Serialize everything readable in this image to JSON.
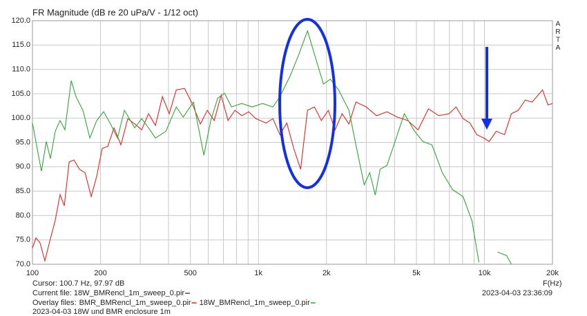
{
  "chart_data": {
    "type": "line",
    "title": "FR Magnitude (dB re 20 uPa/V - 1/12 oct)",
    "brand": [
      "A",
      "R",
      "T",
      "A"
    ],
    "xlabel": "F(Hz)",
    "x_scale": "log",
    "xlim": [
      100,
      20000
    ],
    "xticks": [
      {
        "value": 100,
        "label": "100"
      },
      {
        "value": 200,
        "label": "200"
      },
      {
        "value": 500,
        "label": "500"
      },
      {
        "value": 1000,
        "label": "1k"
      },
      {
        "value": 2000,
        "label": "2k"
      },
      {
        "value": 5000,
        "label": "5k"
      },
      {
        "value": 10000,
        "label": "10k"
      },
      {
        "value": 20000,
        "label": "20k"
      }
    ],
    "xgrid_minor": [
      300,
      400,
      600,
      700,
      800,
      900,
      3000,
      4000,
      6000,
      7000,
      8000,
      9000
    ],
    "ylim": [
      70,
      120
    ],
    "yticks": [
      {
        "value": 70,
        "label": "70.0"
      },
      {
        "value": 75,
        "label": "75.0"
      },
      {
        "value": 80,
        "label": "80.0"
      },
      {
        "value": 85,
        "label": "85.0"
      },
      {
        "value": 90,
        "label": "90.0"
      },
      {
        "value": 95,
        "label": "95.0"
      },
      {
        "value": 100,
        "label": "100.0"
      },
      {
        "value": 105,
        "label": "105.0"
      },
      {
        "value": 110,
        "label": "110.0"
      },
      {
        "value": 115,
        "label": "115.0"
      },
      {
        "value": 120,
        "label": "120.0"
      }
    ],
    "grid": true,
    "cursor": "Cursor: 100.7 Hz, 97.97 dB",
    "current_file": "Current file: 18W_BMRencl_1m_sweep_0.pir",
    "overlay_label": "Overlay files:",
    "timestamp": "2023-04-03  23:36:09",
    "note": "2023-04-03 18W und BMR enclosure 1m",
    "series": [
      {
        "name": "BMR_BMRencl_1m_sweep_0.pir",
        "color": "#e8231e",
        "x": [
          100,
          103.6,
          108,
          113.5,
          119.2,
          126,
          132.5,
          138.3,
          145.3,
          152.6,
          161.4,
          170.8,
          182,
          192.5,
          203.6,
          215.4,
          229.6,
          246.3,
          264.2,
          283.6,
          304.2,
          326.4,
          350.2,
          375.8,
          403.1,
          432.6,
          470.8,
          508.7,
          553.5,
          593.9,
          637.3,
          683.8,
          733.6,
          787.1,
          844.6,
          906.3,
          972.3,
          1080,
          1159,
          1244,
          1335,
          1432,
          1537,
          1649,
          1769,
          1898,
          2037,
          2185,
          2344,
          2515,
          2699,
          2999,
          3334,
          3706,
          4119,
          4577,
          5086,
          5653,
          6282,
          6982,
          7491,
          8039,
          8626,
          9256,
          9929,
          10500,
          11270,
          12270,
          13160,
          14120,
          15150,
          16260,
          18070,
          19110,
          20000
        ],
        "values": [
          73.3,
          75.4,
          74.4,
          70.7,
          74.7,
          78.9,
          84.3,
          82,
          91,
          91.4,
          89.5,
          88.8,
          83.9,
          88.1,
          93.8,
          94.2,
          98,
          94.5,
          99.9,
          98.8,
          97.6,
          100.9,
          98.5,
          104.4,
          100.9,
          105.8,
          106.1,
          103,
          98.8,
          101.6,
          99.5,
          104.7,
          99.5,
          101.6,
          100.5,
          101.3,
          99.9,
          99,
          99.9,
          96.6,
          99,
          93.8,
          89.5,
          101.6,
          102.3,
          99.5,
          101.6,
          97.6,
          100.9,
          98.8,
          103.3,
          102.3,
          100.5,
          101.3,
          100.2,
          99.5,
          97.6,
          101.9,
          100.5,
          100.9,
          102.3,
          99.9,
          99,
          96.6,
          95.9,
          95.2,
          97.3,
          96.6,
          100.9,
          101.6,
          103.7,
          103.3,
          105.8,
          102.7,
          103
        ]
      },
      {
        "name": "18W_BMRencl_1m_sweep_0.pir",
        "color": "#2fa636",
        "x": [
          100,
          109.6,
          115.1,
          120.1,
          126.1,
          132.5,
          139.2,
          148.4,
          155.8,
          167.2,
          179.4,
          192.5,
          206.5,
          221.6,
          237.7,
          255.1,
          283.6,
          304.2,
          326.4,
          350.2,
          389.3,
          432.6,
          464.2,
          515.9,
          573.4,
          615.2,
          660.1,
          708.4,
          759.6,
          844.6,
          938.6,
          1043,
          1159,
          1244,
          1383,
          1505,
          1649,
          1794,
          1939,
          2080,
          2263,
          2515,
          2699,
          2937,
          3108,
          3287,
          3453,
          3706,
          3976,
          4419,
          4911,
          5344,
          5857,
          6510,
          7234,
          8039,
          8811,
          9452,
          10400,
          11430,
          12530,
          13160
        ],
        "values": [
          99,
          89.1,
          95.2,
          91.7,
          97.3,
          99.5,
          97.6,
          107.7,
          104.4,
          101.6,
          95.9,
          99.5,
          101.3,
          98.8,
          95.9,
          101.6,
          98,
          99.9,
          98,
          95.9,
          97.3,
          102.3,
          100.2,
          103.3,
          92.4,
          99.5,
          104.1,
          105.1,
          102.3,
          103,
          102.3,
          103,
          102.3,
          104.4,
          108.7,
          112.9,
          117.9,
          112.2,
          107,
          108,
          105.8,
          101.6,
          94.5,
          86.3,
          88.8,
          84.2,
          89.5,
          90.3,
          94.5,
          100.9,
          97.3,
          95.2,
          94.5,
          88.8,
          85.3,
          83.9,
          78.9,
          70.4,
          null,
          72.5,
          71.8,
          70
        ]
      }
    ]
  }
}
